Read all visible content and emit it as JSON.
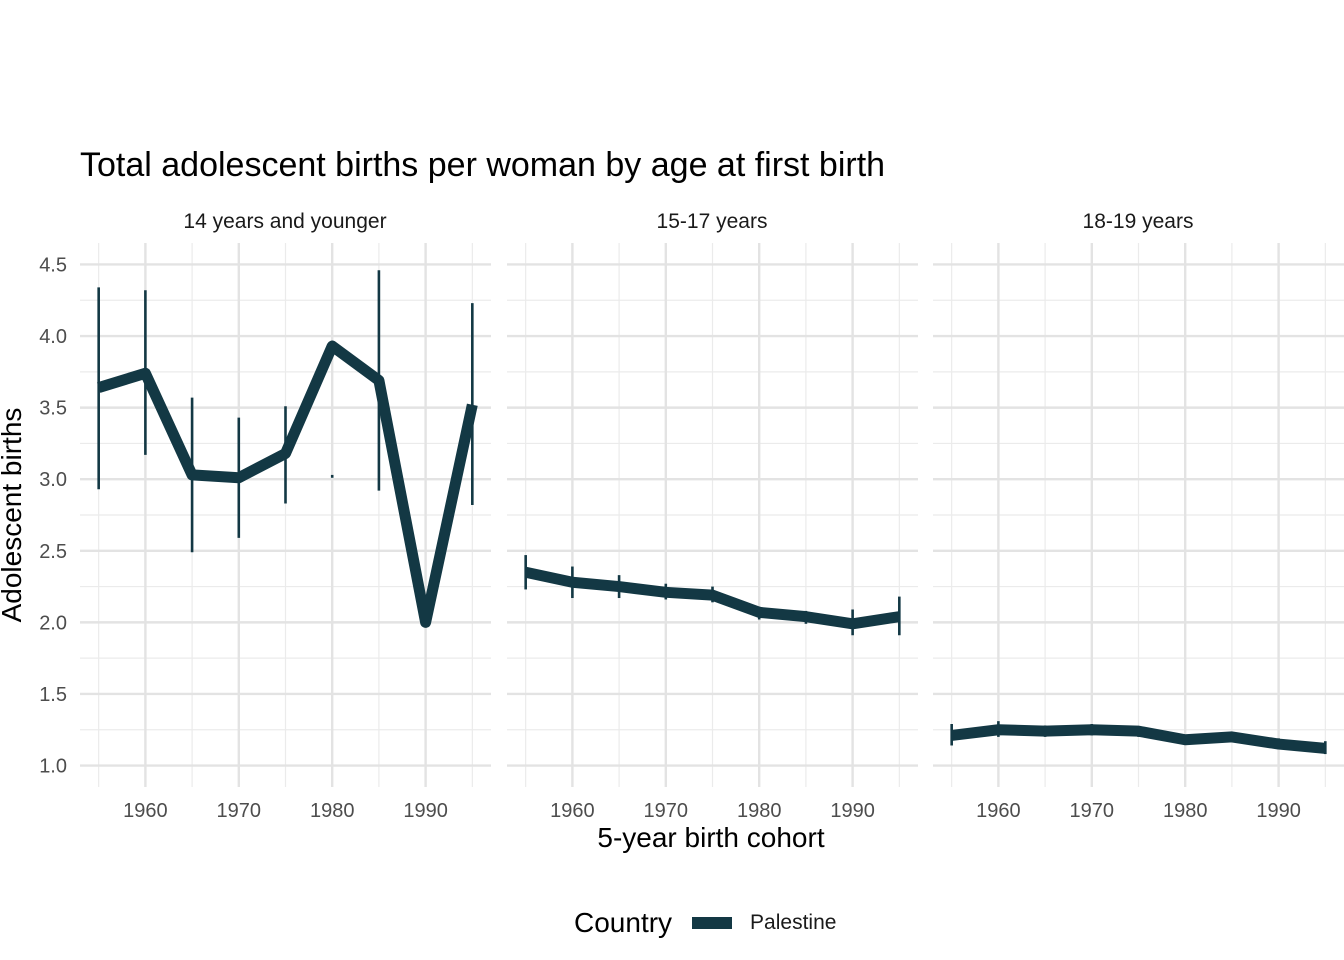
{
  "chart_data": {
    "type": "line",
    "title": "Total adolescent births per woman by age at first birth",
    "xlabel": "5-year birth cohort",
    "ylabel": "Adolescent births",
    "xlim": [
      1953,
      1997
    ],
    "ylim": [
      0.85,
      4.65
    ],
    "x_ticks": [
      1960,
      1970,
      1980,
      1990
    ],
    "y_ticks": [
      1.0,
      1.5,
      2.0,
      2.5,
      3.0,
      3.5,
      4.0,
      4.5
    ],
    "x_tick_labels": [
      "1960",
      "1970",
      "1980",
      "1990"
    ],
    "y_tick_labels": [
      "1.0",
      "1.5",
      "2.0",
      "2.5",
      "3.0",
      "3.5",
      "4.0",
      "4.5"
    ],
    "grid": true,
    "legend": {
      "title": "Country",
      "position": "bottom",
      "entries": [
        "Palestine"
      ]
    },
    "colors": {
      "Palestine": "#133844"
    },
    "panels": [
      {
        "label": "14 years and younger",
        "series": [
          {
            "name": "Palestine",
            "x": [
              1955,
              1960,
              1965,
              1970,
              1975,
              1980,
              1985,
              1990,
              1995
            ],
            "y": [
              3.64,
              3.74,
              3.03,
              3.01,
              3.18,
              3.93,
              3.69,
              2.0,
              3.52
            ],
            "lower": [
              2.93,
              3.17,
              2.49,
              2.59,
              2.83,
              3.01,
              2.92,
              null,
              2.82
            ],
            "upper": [
              4.34,
              4.32,
              3.57,
              3.43,
              3.51,
              3.03,
              4.46,
              null,
              4.23
            ]
          }
        ]
      },
      {
        "label": "15-17 years",
        "series": [
          {
            "name": "Palestine",
            "x": [
              1955,
              1960,
              1965,
              1970,
              1975,
              1980,
              1985,
              1990,
              1995
            ],
            "y": [
              2.35,
              2.28,
              2.25,
              2.21,
              2.19,
              2.07,
              2.04,
              1.99,
              2.04
            ],
            "lower": [
              2.23,
              2.17,
              2.17,
              2.16,
              2.14,
              2.02,
              1.99,
              1.91,
              1.91
            ],
            "upper": [
              2.47,
              2.39,
              2.33,
              2.27,
              2.25,
              2.11,
              2.08,
              2.09,
              2.18
            ]
          }
        ]
      },
      {
        "label": "18-19 years",
        "series": [
          {
            "name": "Palestine",
            "x": [
              1955,
              1960,
              1965,
              1970,
              1975,
              1980,
              1985,
              1990,
              1995
            ],
            "y": [
              1.21,
              1.25,
              1.24,
              1.25,
              1.24,
              1.18,
              1.2,
              1.15,
              1.12
            ],
            "lower": [
              1.14,
              1.2,
              1.2,
              1.21,
              1.2,
              1.15,
              1.17,
              1.12,
              1.08
            ],
            "upper": [
              1.29,
              1.31,
              1.28,
              1.29,
              1.27,
              1.21,
              1.23,
              1.19,
              1.17
            ]
          }
        ]
      }
    ]
  }
}
